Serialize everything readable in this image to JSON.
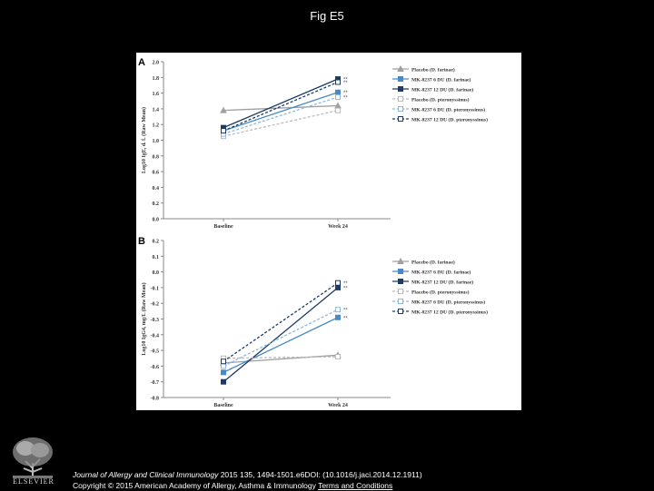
{
  "slide_title": "Fig E5",
  "publisher": "ELSEVIER",
  "citation": {
    "journal": "Journal of Allergy and Clinical Immunology",
    "details": " 2015 135, 1494-1501.e6DOI: (10.1016/j.jaci.2014.12.1911) ",
    "copyright": "Copyright © 2015 American Academy of Allergy, Asthma & Immunology ",
    "terms_link": "Terms and Conditions"
  },
  "chart_data": [
    {
      "type": "line",
      "panel_label": "A",
      "ylabel": "Log10 IgE, d. f. (Raw Mean)",
      "ylim": [
        0.0,
        2.0
      ],
      "yticks": [
        "2.0",
        "1.8",
        "1.6",
        "1.4",
        "1.2",
        "1.0",
        "0.8",
        "0.6",
        "0.4",
        "0.2",
        "0.0"
      ],
      "categories": [
        "Baseline",
        "Week 24"
      ],
      "series": [
        {
          "name": "Placebo (D. farinae)",
          "color": "#a0a0a0",
          "dash": "solid",
          "marker": "triangle",
          "fill": true,
          "values": [
            1.38,
            1.44
          ],
          "annotation": ""
        },
        {
          "name": "MK-8237 6 DU (D. farinae)",
          "color": "#4a89c8",
          "dash": "solid",
          "marker": "square",
          "fill": true,
          "values": [
            1.12,
            1.61
          ],
          "annotation": "**"
        },
        {
          "name": "MK-8237 12 DU (D. farinae)",
          "color": "#1d3b64",
          "dash": "solid",
          "marker": "square",
          "fill": true,
          "values": [
            1.16,
            1.78
          ],
          "annotation": "**"
        },
        {
          "name": "Placebo (D. pteronyssinus)",
          "color": "#bbbbbb",
          "dash": "dashed",
          "marker": "square",
          "fill": false,
          "values": [
            1.05,
            1.38
          ],
          "annotation": ""
        },
        {
          "name": "MK-8237 6 DU (D. pteronyssinus)",
          "color": "#8cb8e0",
          "dash": "dashed",
          "marker": "square",
          "fill": false,
          "values": [
            1.08,
            1.55
          ],
          "annotation": "**"
        },
        {
          "name": "MK-8237 12 DU (D. pteronyssinus)",
          "color": "#1d3b64",
          "dash": "dashed",
          "marker": "square",
          "fill": false,
          "values": [
            1.12,
            1.74
          ],
          "annotation": "**"
        }
      ]
    },
    {
      "type": "line",
      "panel_label": "B",
      "ylabel": "Log10 IgG4, mg/L (Raw Mean)",
      "ylim": [
        -0.8,
        0.2
      ],
      "yticks": [
        "0.2",
        "0.1",
        "0.0",
        "-0.1",
        "-0.2",
        "-0.3",
        "-0.4",
        "-0.5",
        "-0.6",
        "-0.7",
        "-0.8"
      ],
      "categories": [
        "Baseline",
        "Week 24"
      ],
      "series": [
        {
          "name": "Placebo (D. farinae)",
          "color": "#a0a0a0",
          "dash": "solid",
          "marker": "triangle",
          "fill": true,
          "values": [
            -0.58,
            -0.53
          ],
          "annotation": ""
        },
        {
          "name": "MK-8237 6 DU (D. farinae)",
          "color": "#4a89c8",
          "dash": "solid",
          "marker": "square",
          "fill": true,
          "values": [
            -0.64,
            -0.29
          ],
          "annotation": "**"
        },
        {
          "name": "MK-8237 12 DU (D. farinae)",
          "color": "#1d3b64",
          "dash": "solid",
          "marker": "square",
          "fill": true,
          "values": [
            -0.7,
            -0.1
          ],
          "annotation": "**"
        },
        {
          "name": "Placebo (D. pteronyssinus)",
          "color": "#bbbbbb",
          "dash": "dashed",
          "marker": "square",
          "fill": false,
          "values": [
            -0.55,
            -0.54
          ],
          "annotation": ""
        },
        {
          "name": "MK-8237 6 DU (D. pteronyssinus)",
          "color": "#8cb8e0",
          "dash": "dashed",
          "marker": "square",
          "fill": false,
          "values": [
            -0.6,
            -0.24
          ],
          "annotation": "**"
        },
        {
          "name": "MK-8237 12 DU (D. pteronyssinus)",
          "color": "#1d3b64",
          "dash": "dashed",
          "marker": "square",
          "fill": false,
          "values": [
            -0.57,
            -0.07
          ],
          "annotation": "**"
        }
      ]
    }
  ]
}
